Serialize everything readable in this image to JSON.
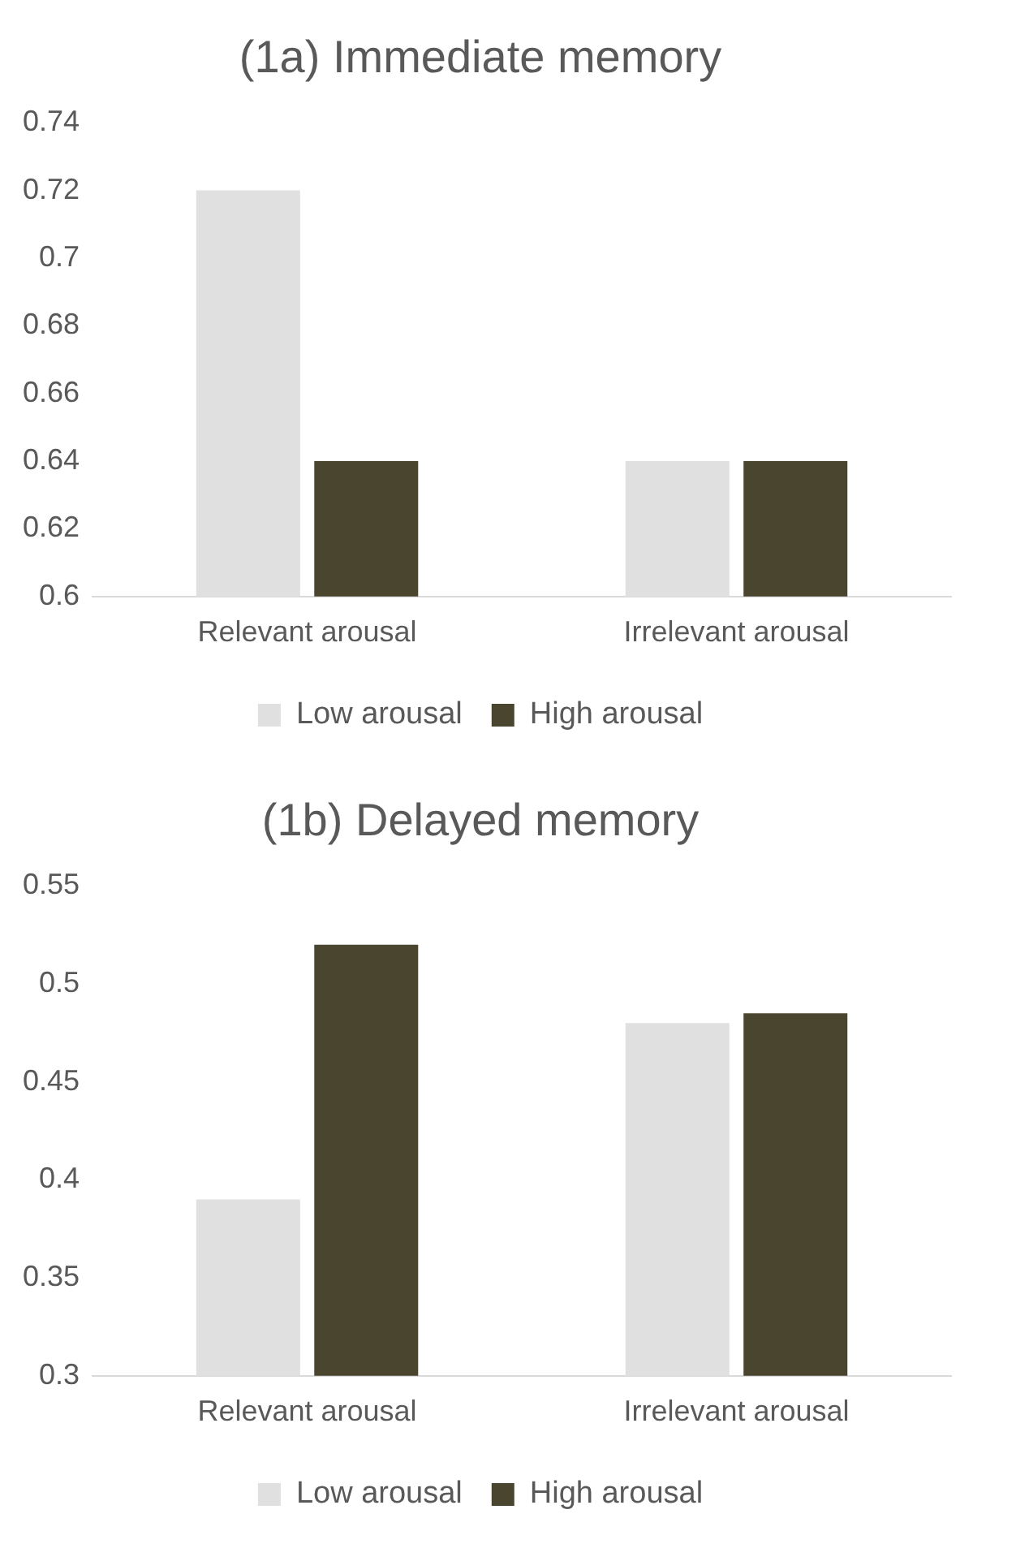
{
  "chart_data": [
    {
      "type": "bar",
      "title": "(1a) Immediate memory",
      "categories": [
        "Relevant arousal",
        "Irrelevant arousal"
      ],
      "series": [
        {
          "name": "Low arousal",
          "color": "#e0e0e0",
          "values": [
            0.72,
            0.64
          ]
        },
        {
          "name": "High arousal",
          "color": "#4a452e",
          "values": [
            0.64,
            0.64
          ]
        }
      ],
      "ylim": [
        0.6,
        0.74
      ],
      "yticks": [
        0.6,
        0.62,
        0.64,
        0.66,
        0.68,
        0.7,
        0.72,
        0.74
      ],
      "grid": false,
      "legend": "bottom"
    },
    {
      "type": "bar",
      "title": "(1b) Delayed memory",
      "categories": [
        "Relevant arousal",
        "Irrelevant arousal"
      ],
      "series": [
        {
          "name": "Low arousal",
          "color": "#e0e0e0",
          "values": [
            0.39,
            0.48
          ]
        },
        {
          "name": "High arousal",
          "color": "#4a452e",
          "values": [
            0.52,
            0.485
          ]
        }
      ],
      "ylim": [
        0.3,
        0.55
      ],
      "yticks": [
        0.3,
        0.35,
        0.4,
        0.45,
        0.5,
        0.55
      ],
      "grid": false,
      "legend": "bottom"
    }
  ]
}
